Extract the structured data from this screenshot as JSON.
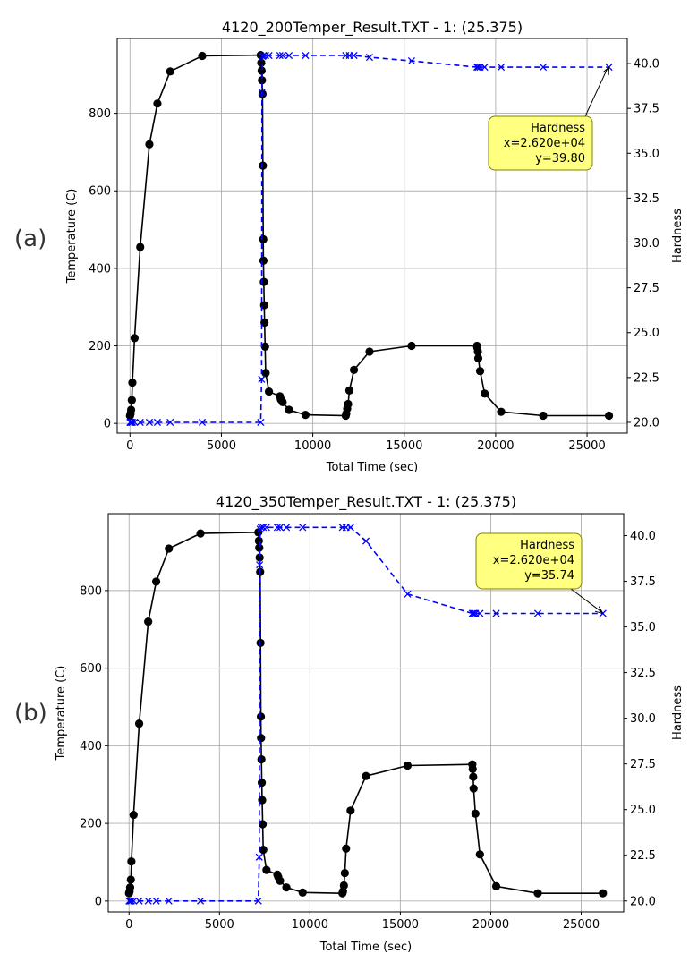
{
  "chart_data": [
    {
      "type": "line",
      "panel_label": "(a)",
      "title": "4120_200Temper_Result.TXT - 1: (25.375)",
      "xlabel": "Total Time (sec)",
      "ylabel_left": "Temperature (C)",
      "ylabel_right": "Hardness",
      "xlim": [
        -700,
        27200
      ],
      "ylim_left": [
        -25,
        993
      ],
      "ylim_right": [
        19.4,
        41.4
      ],
      "x_ticks": [
        0,
        5000,
        10000,
        15000,
        20000,
        25000
      ],
      "y_left_ticks": [
        0,
        200,
        400,
        600,
        800
      ],
      "y_right_ticks": [
        20.0,
        22.5,
        25.0,
        27.5,
        30.0,
        32.5,
        35.0,
        37.5,
        40.0
      ],
      "grid": true,
      "series": [
        {
          "name": "Temperature",
          "axis": "left",
          "color": "#000000",
          "marker": "circle",
          "linestyle": "solid",
          "x": [
            0,
            30,
            60,
            100,
            130,
            250,
            560,
            1060,
            1500,
            2200,
            3950,
            7150,
            7180,
            7200,
            7220,
            7250,
            7270,
            7290,
            7300,
            7320,
            7340,
            7360,
            7390,
            7420,
            7600,
            8200,
            8250,
            8350,
            8700,
            9600,
            11800,
            11830,
            11880,
            11930,
            12000,
            12250,
            13100,
            15400,
            18980,
            19000,
            19030,
            19050,
            19150,
            19400,
            20300,
            22600,
            26200
          ],
          "y": [
            20,
            25,
            35,
            60,
            105,
            220,
            455,
            720,
            825,
            908,
            948,
            950,
            930,
            910,
            885,
            850,
            665,
            475,
            420,
            365,
            305,
            260,
            198,
            130,
            82,
            70,
            62,
            55,
            35,
            22,
            20,
            25,
            38,
            50,
            85,
            138,
            185,
            200,
            200,
            195,
            185,
            168,
            135,
            77,
            30,
            20,
            20
          ]
        },
        {
          "name": "Hardness",
          "axis": "right",
          "color": "#0000ff",
          "marker": "x",
          "linestyle": "dashed",
          "x": [
            0,
            30,
            60,
            100,
            130,
            250,
            560,
            1060,
            1500,
            2200,
            3950,
            7150,
            7200,
            7220,
            7250,
            7300,
            7420,
            7600,
            8200,
            8350,
            8700,
            9600,
            11800,
            12000,
            12250,
            13100,
            15400,
            18980,
            19050,
            19150,
            19400,
            20300,
            22600,
            26200
          ],
          "y": [
            20,
            20,
            20,
            20,
            20,
            20,
            20,
            20,
            20,
            20,
            20,
            20,
            22.4,
            38.4,
            40.4,
            40.45,
            40.45,
            40.45,
            40.45,
            40.45,
            40.45,
            40.45,
            40.45,
            40.45,
            40.45,
            40.35,
            40.15,
            39.8,
            39.8,
            39.8,
            39.8,
            39.8,
            39.8,
            39.8
          ]
        }
      ],
      "annotation": {
        "lines": [
          "Hardness",
          "x=2.620e+04",
          "y=39.80"
        ],
        "target_x": 26200,
        "target_y": 39.8,
        "fill": "#ffff80",
        "edge": "#808000"
      }
    },
    {
      "type": "line",
      "panel_label": "(b)",
      "title": "4120_350Temper_Result.TXT - 1: (25.375)",
      "xlabel": "Total Time (sec)",
      "ylabel_left": "Temperature (C)",
      "ylabel_right": "Hardness",
      "xlim": [
        -1150,
        27350
      ],
      "ylim_left": [
        -28,
        998
      ],
      "ylim_right": [
        19.4,
        41.2
      ],
      "x_ticks": [
        0,
        5000,
        10000,
        15000,
        20000,
        25000
      ],
      "y_left_ticks": [
        0,
        200,
        400,
        600,
        800
      ],
      "y_right_ticks": [
        20.0,
        22.5,
        25.0,
        27.5,
        30.0,
        32.5,
        35.0,
        37.5,
        40.0
      ],
      "grid": true,
      "series": [
        {
          "name": "Temperature",
          "axis": "left",
          "color": "#000000",
          "marker": "circle",
          "linestyle": "solid",
          "x": [
            0,
            30,
            60,
            100,
            130,
            250,
            560,
            1060,
            1500,
            2200,
            3950,
            7150,
            7180,
            7200,
            7220,
            7250,
            7270,
            7290,
            7300,
            7320,
            7340,
            7360,
            7390,
            7420,
            7600,
            8200,
            8250,
            8350,
            8700,
            9600,
            11800,
            11830,
            11880,
            11930,
            12000,
            12250,
            13100,
            15400,
            18980,
            19000,
            19030,
            19050,
            19150,
            19400,
            20300,
            22600,
            26200
          ],
          "y": [
            20,
            25,
            35,
            55,
            102,
            222,
            457,
            720,
            823,
            908,
            947,
            950,
            928,
            910,
            885,
            848,
            665,
            475,
            420,
            365,
            305,
            260,
            198,
            132,
            80,
            68,
            62,
            52,
            35,
            22,
            20,
            25,
            40,
            72,
            135,
            233,
            322,
            349,
            352,
            340,
            320,
            290,
            225,
            120,
            38,
            20,
            20
          ]
        },
        {
          "name": "Hardness",
          "axis": "right",
          "color": "#0000ff",
          "marker": "x",
          "linestyle": "dashed",
          "x": [
            0,
            30,
            60,
            100,
            130,
            250,
            560,
            1060,
            1500,
            2200,
            3950,
            7150,
            7200,
            7220,
            7250,
            7300,
            7420,
            7600,
            8200,
            8350,
            8700,
            9600,
            11800,
            12000,
            12250,
            13100,
            15400,
            18980,
            19050,
            19150,
            19400,
            20300,
            22600,
            26200
          ],
          "y": [
            20,
            20,
            20,
            20,
            20,
            20,
            20,
            20,
            20,
            20,
            20,
            20,
            22.4,
            38.4,
            40.35,
            40.45,
            40.45,
            40.45,
            40.45,
            40.45,
            40.45,
            40.45,
            40.45,
            40.45,
            40.45,
            39.7,
            36.8,
            35.74,
            35.74,
            35.74,
            35.74,
            35.74,
            35.74,
            35.74
          ]
        }
      ],
      "annotation": {
        "lines": [
          "Hardness",
          "x=2.620e+04",
          "y=35.74"
        ],
        "target_x": 26200,
        "target_y": 35.74,
        "fill": "#ffff80",
        "edge": "#808000"
      }
    }
  ]
}
